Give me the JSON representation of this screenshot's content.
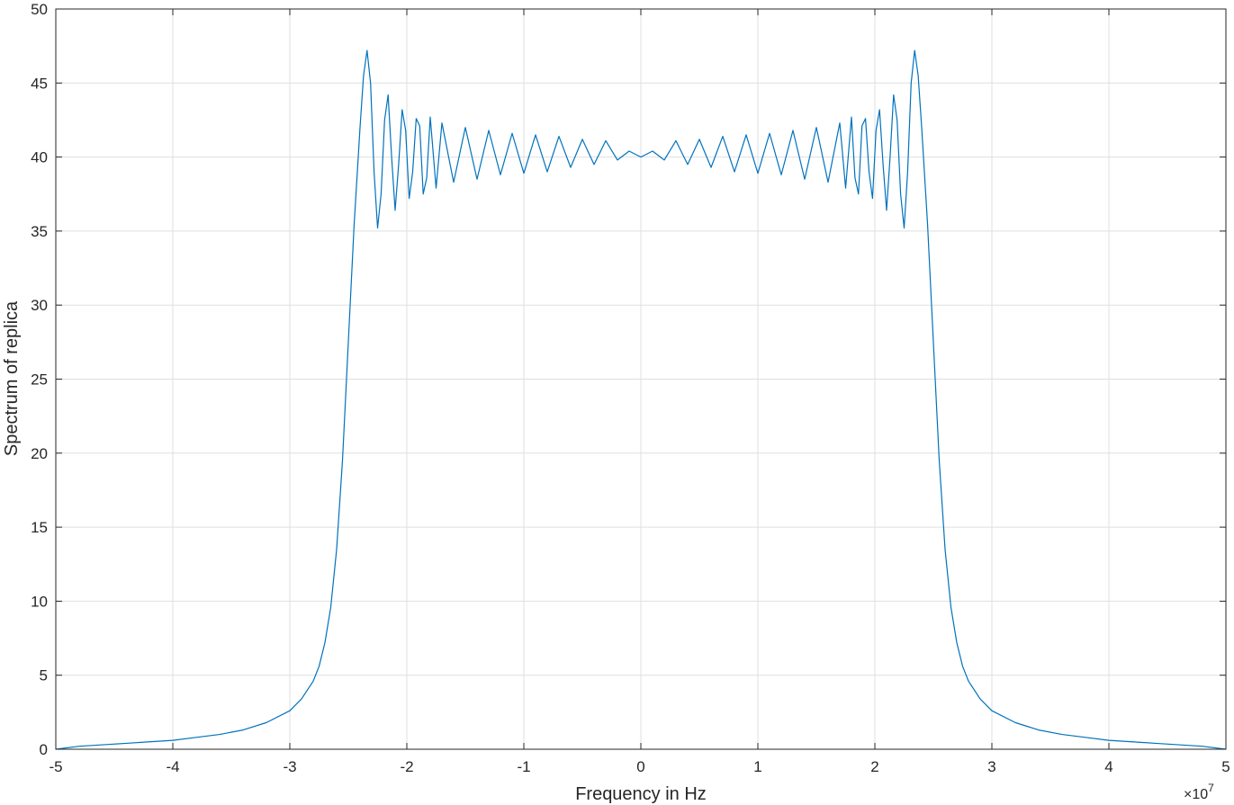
{
  "chart_data": {
    "type": "line",
    "title": "",
    "xlabel": "Frequency in Hz",
    "ylabel": "Spectrum of replica",
    "x_exponent_label": "×10",
    "x_exponent_power": "7",
    "x_scale": 10000000,
    "xlim": [
      -50000000,
      50000000
    ],
    "ylim": [
      0,
      50
    ],
    "grid": true,
    "legend": "none",
    "x_ticks": [
      -5,
      -4,
      -3,
      -2,
      -1,
      0,
      1,
      2,
      3,
      4,
      5
    ],
    "x_tick_labels": [
      "-5",
      "-4",
      "-3",
      "-2",
      "-1",
      "0",
      "1",
      "2",
      "3",
      "4",
      "5"
    ],
    "y_ticks": [
      0,
      5,
      10,
      15,
      20,
      25,
      30,
      35,
      40,
      45,
      50
    ],
    "y_tick_labels": [
      "0",
      "5",
      "10",
      "15",
      "20",
      "25",
      "30",
      "35",
      "40",
      "45",
      "50"
    ],
    "line_color": "#0072BD",
    "series": [
      {
        "x": [
          -50000000,
          -48000000,
          -46000000,
          -44000000,
          -42000000,
          -40000000,
          -38000000,
          -36000000,
          -34000000,
          -32000000,
          -30000000,
          -29000000,
          -28000000,
          -27500000,
          -27000000,
          -26500000,
          -26000000,
          -25500000,
          -25000000,
          -24500000,
          -24000000,
          -23700000,
          -23400000,
          -23100000,
          -22800000,
          -22500000,
          -22200000,
          -21900000,
          -21600000,
          -21300000,
          -21000000,
          -20700000,
          -20400000,
          -20100000,
          -19800000,
          -19500000,
          -19200000,
          -18900000,
          -18600000,
          -18300000,
          -18000000,
          -17500000,
          -17000000,
          -16000000,
          -15000000,
          -14000000,
          -13000000,
          -12000000,
          -11000000,
          -10000000,
          -9000000,
          -8000000,
          -7000000,
          -6000000,
          -5000000,
          -4000000,
          -3000000,
          -2000000,
          -1000000,
          0,
          1000000,
          2000000,
          3000000,
          4000000,
          5000000,
          6000000,
          7000000,
          8000000,
          9000000,
          10000000,
          11000000,
          12000000,
          13000000,
          14000000,
          15000000,
          16000000,
          17000000,
          17500000,
          18000000,
          18300000,
          18600000,
          18900000,
          19200000,
          19500000,
          19800000,
          20100000,
          20400000,
          20700000,
          21000000,
          21300000,
          21600000,
          21900000,
          22200000,
          22500000,
          22800000,
          23100000,
          23400000,
          23700000,
          24000000,
          24500000,
          25000000,
          25500000,
          26000000,
          26500000,
          27000000,
          27500000,
          28000000,
          29000000,
          30000000,
          32000000,
          34000000,
          36000000,
          38000000,
          40000000,
          42000000,
          44000000,
          46000000,
          48000000,
          50000000
        ],
        "y": [
          0.0,
          0.2,
          0.3,
          0.4,
          0.5,
          0.6,
          0.8,
          1.0,
          1.3,
          1.8,
          2.6,
          3.4,
          4.6,
          5.6,
          7.2,
          9.6,
          13.5,
          19.5,
          27.5,
          35.5,
          42.0,
          45.5,
          47.2,
          45.0,
          39.0,
          35.2,
          37.5,
          42.5,
          44.2,
          40.0,
          36.4,
          39.5,
          43.2,
          41.8,
          37.2,
          39.0,
          42.6,
          42.1,
          37.5,
          38.6,
          42.7,
          37.9,
          42.3,
          38.3,
          42.0,
          38.5,
          41.8,
          38.8,
          41.6,
          38.9,
          41.5,
          39.0,
          41.4,
          39.3,
          41.2,
          39.5,
          41.1,
          39.8,
          40.4,
          40.0,
          40.4,
          39.8,
          41.1,
          39.5,
          41.2,
          39.3,
          41.4,
          39.0,
          41.5,
          38.9,
          41.6,
          38.8,
          41.8,
          38.5,
          42.0,
          38.3,
          42.3,
          37.9,
          42.7,
          38.6,
          37.5,
          42.1,
          42.6,
          39.0,
          37.2,
          41.8,
          43.2,
          39.5,
          36.4,
          40.0,
          44.2,
          42.5,
          37.5,
          35.2,
          39.0,
          45.0,
          47.2,
          45.5,
          42.0,
          35.5,
          27.5,
          19.5,
          13.5,
          9.6,
          7.2,
          5.6,
          4.6,
          3.4,
          2.6,
          1.8,
          1.3,
          1.0,
          0.8,
          0.6,
          0.5,
          0.4,
          0.3,
          0.2,
          0.0
        ]
      }
    ]
  }
}
